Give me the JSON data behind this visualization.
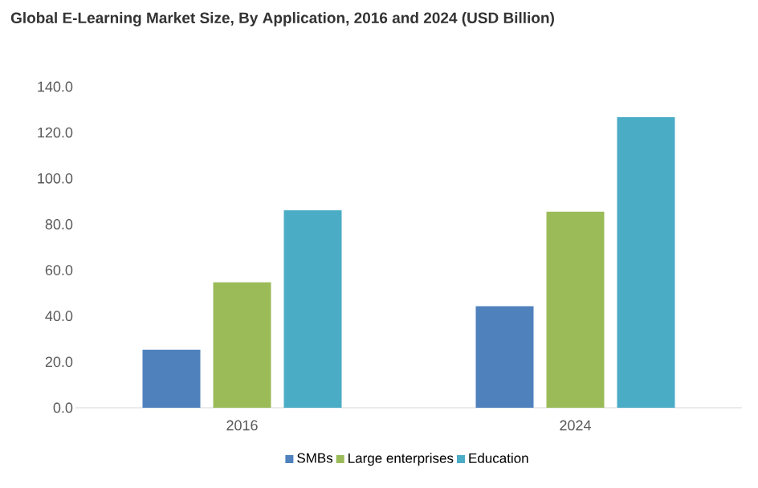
{
  "chart_data": {
    "type": "bar",
    "title": "Global E-Learning Market Size, By Application, 2016 and 2024 (USD Billion)",
    "categories": [
      "2016",
      "2024"
    ],
    "series": [
      {
        "name": "SMBs",
        "color": "#4f81bd",
        "values": [
          25.3,
          44.3
        ]
      },
      {
        "name": "Large enterprises",
        "color": "#9bbb59",
        "values": [
          54.7,
          85.5
        ]
      },
      {
        "name": "Education",
        "color": "#4bacc6",
        "values": [
          86.1,
          126.7
        ]
      }
    ],
    "ylim": [
      0,
      140
    ],
    "yticks": [
      {
        "value": 0,
        "label": "0.0"
      },
      {
        "value": 20,
        "label": "20.0"
      },
      {
        "value": 40,
        "label": "40.0"
      },
      {
        "value": 60,
        "label": "60.0"
      },
      {
        "value": 80,
        "label": "80.0"
      },
      {
        "value": 100,
        "label": "100.0"
      },
      {
        "value": 120,
        "label": "120.0"
      },
      {
        "value": 140,
        "label": "140.0"
      }
    ],
    "grid": false,
    "legend": "bottom"
  }
}
